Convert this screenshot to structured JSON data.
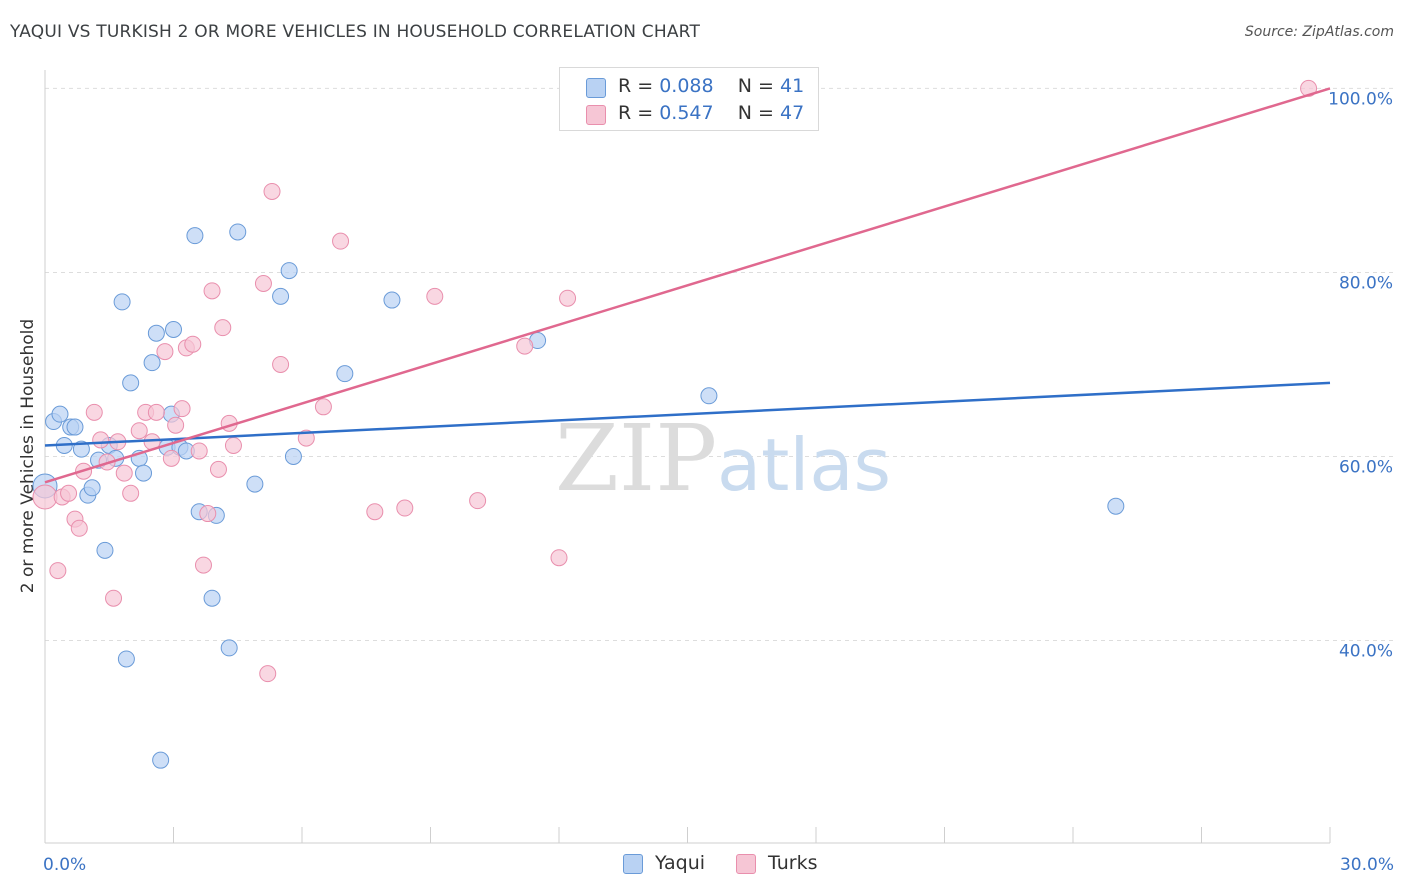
{
  "title": "YAQUI VS TURKISH 2 OR MORE VEHICLES IN HOUSEHOLD CORRELATION CHART",
  "source": "Source: ZipAtlas.com",
  "watermark": {
    "zip": "ZIP",
    "atlas": "atlas"
  },
  "legend": {
    "r_label": "R =",
    "n_label": "N =",
    "rows": [
      {
        "series": "Yaqui",
        "r": "0.088",
        "n": "41"
      },
      {
        "series": "Turks",
        "r": "0.547",
        "n": "47"
      }
    ]
  },
  "colors": {
    "yaqui_fill": "#b9d2f3",
    "yaqui_stroke": "#6a9bd8",
    "yaqui_line": "#2f6fc8",
    "turks_fill": "#f6c6d5",
    "turks_stroke": "#e98fad",
    "turks_line": "#e0688f",
    "grid": "#dddddd",
    "axis_text": "#3b73c4"
  },
  "chart_data": {
    "type": "scatter",
    "title": "YAQUI VS TURKISH 2 OR MORE VEHICLES IN HOUSEHOLD CORRELATION CHART",
    "xlabel": "",
    "ylabel": "2 or more Vehicles in Household",
    "xlim": [
      0,
      30
    ],
    "ylim": [
      18,
      102
    ],
    "x_tick_labels": [
      {
        "value": 0,
        "label": "0.0%"
      },
      {
        "value": 30,
        "label": "30.0%"
      }
    ],
    "y_tick_labels": [
      {
        "value": 100,
        "label": "100.0%"
      },
      {
        "value": 80,
        "label": "80.0%"
      },
      {
        "value": 60,
        "label": "60.0%"
      },
      {
        "value": 40,
        "label": "40.0%"
      }
    ],
    "series": [
      {
        "name": "Yaqui",
        "r": 0.088,
        "n": 41,
        "trend": {
          "x": [
            0,
            30
          ],
          "y": [
            61.2,
            68.0
          ]
        },
        "points": [
          {
            "x": 0.0,
            "y": 56.8,
            "big": true
          },
          {
            "x": 0.2,
            "y": 63.8
          },
          {
            "x": 0.35,
            "y": 64.6
          },
          {
            "x": 0.45,
            "y": 61.2
          },
          {
            "x": 0.6,
            "y": 63.2
          },
          {
            "x": 0.7,
            "y": 63.2
          },
          {
            "x": 0.85,
            "y": 60.8
          },
          {
            "x": 1.0,
            "y": 55.8
          },
          {
            "x": 1.1,
            "y": 56.6
          },
          {
            "x": 1.25,
            "y": 59.6
          },
          {
            "x": 1.4,
            "y": 49.8
          },
          {
            "x": 1.5,
            "y": 61.2
          },
          {
            "x": 1.65,
            "y": 59.8
          },
          {
            "x": 1.8,
            "y": 76.8
          },
          {
            "x": 1.9,
            "y": 38.0
          },
          {
            "x": 2.0,
            "y": 68.0
          },
          {
            "x": 2.2,
            "y": 59.8
          },
          {
            "x": 2.3,
            "y": 58.2
          },
          {
            "x": 2.5,
            "y": 70.2
          },
          {
            "x": 2.6,
            "y": 73.4
          },
          {
            "x": 2.7,
            "y": 27.0
          },
          {
            "x": 2.85,
            "y": 61.0
          },
          {
            "x": 2.95,
            "y": 64.6
          },
          {
            "x": 3.0,
            "y": 73.8
          },
          {
            "x": 3.15,
            "y": 61.0
          },
          {
            "x": 3.3,
            "y": 60.6
          },
          {
            "x": 3.5,
            "y": 84.0
          },
          {
            "x": 3.6,
            "y": 54.0
          },
          {
            "x": 3.9,
            "y": 44.6
          },
          {
            "x": 4.0,
            "y": 53.6
          },
          {
            "x": 4.3,
            "y": 39.2
          },
          {
            "x": 4.5,
            "y": 84.4
          },
          {
            "x": 4.9,
            "y": 57.0
          },
          {
            "x": 5.5,
            "y": 77.4
          },
          {
            "x": 5.7,
            "y": 80.2
          },
          {
            "x": 5.8,
            "y": 60.0
          },
          {
            "x": 7.0,
            "y": 69.0
          },
          {
            "x": 8.1,
            "y": 77.0
          },
          {
            "x": 11.5,
            "y": 72.6
          },
          {
            "x": 15.5,
            "y": 66.6
          },
          {
            "x": 25.0,
            "y": 54.6
          }
        ]
      },
      {
        "name": "Turks",
        "r": 0.547,
        "n": 47,
        "trend": {
          "x": [
            0,
            30
          ],
          "y": [
            57.2,
            100.0
          ]
        },
        "points": [
          {
            "x": 0.0,
            "y": 55.6,
            "big": true
          },
          {
            "x": 0.3,
            "y": 47.6
          },
          {
            "x": 0.4,
            "y": 55.6
          },
          {
            "x": 0.55,
            "y": 56.0
          },
          {
            "x": 0.7,
            "y": 53.2
          },
          {
            "x": 0.8,
            "y": 52.2
          },
          {
            "x": 0.9,
            "y": 58.4
          },
          {
            "x": 1.15,
            "y": 64.8
          },
          {
            "x": 1.3,
            "y": 61.8
          },
          {
            "x": 1.45,
            "y": 59.4
          },
          {
            "x": 1.6,
            "y": 44.6
          },
          {
            "x": 1.7,
            "y": 61.6
          },
          {
            "x": 1.85,
            "y": 58.2
          },
          {
            "x": 2.0,
            "y": 56.0
          },
          {
            "x": 2.2,
            "y": 62.8
          },
          {
            "x": 2.35,
            "y": 64.8
          },
          {
            "x": 2.5,
            "y": 61.6
          },
          {
            "x": 2.6,
            "y": 64.8
          },
          {
            "x": 2.8,
            "y": 71.4
          },
          {
            "x": 2.95,
            "y": 59.8
          },
          {
            "x": 3.05,
            "y": 63.4
          },
          {
            "x": 3.2,
            "y": 65.2
          },
          {
            "x": 3.3,
            "y": 71.8
          },
          {
            "x": 3.45,
            "y": 72.2
          },
          {
            "x": 3.6,
            "y": 60.6
          },
          {
            "x": 3.7,
            "y": 48.2
          },
          {
            "x": 3.8,
            "y": 53.8
          },
          {
            "x": 3.9,
            "y": 78.0
          },
          {
            "x": 4.05,
            "y": 58.6
          },
          {
            "x": 4.15,
            "y": 74.0
          },
          {
            "x": 4.3,
            "y": 63.6
          },
          {
            "x": 4.4,
            "y": 61.2
          },
          {
            "x": 5.1,
            "y": 78.8
          },
          {
            "x": 5.2,
            "y": 36.4
          },
          {
            "x": 5.3,
            "y": 88.8
          },
          {
            "x": 5.5,
            "y": 70.0
          },
          {
            "x": 6.1,
            "y": 62.0
          },
          {
            "x": 6.5,
            "y": 65.4
          },
          {
            "x": 6.9,
            "y": 83.4
          },
          {
            "x": 7.7,
            "y": 54.0
          },
          {
            "x": 8.4,
            "y": 54.4
          },
          {
            "x": 9.1,
            "y": 77.4
          },
          {
            "x": 10.1,
            "y": 55.2
          },
          {
            "x": 11.2,
            "y": 72.0
          },
          {
            "x": 12.0,
            "y": 49.0
          },
          {
            "x": 12.2,
            "y": 77.2
          },
          {
            "x": 29.5,
            "y": 100.0
          }
        ]
      }
    ]
  }
}
